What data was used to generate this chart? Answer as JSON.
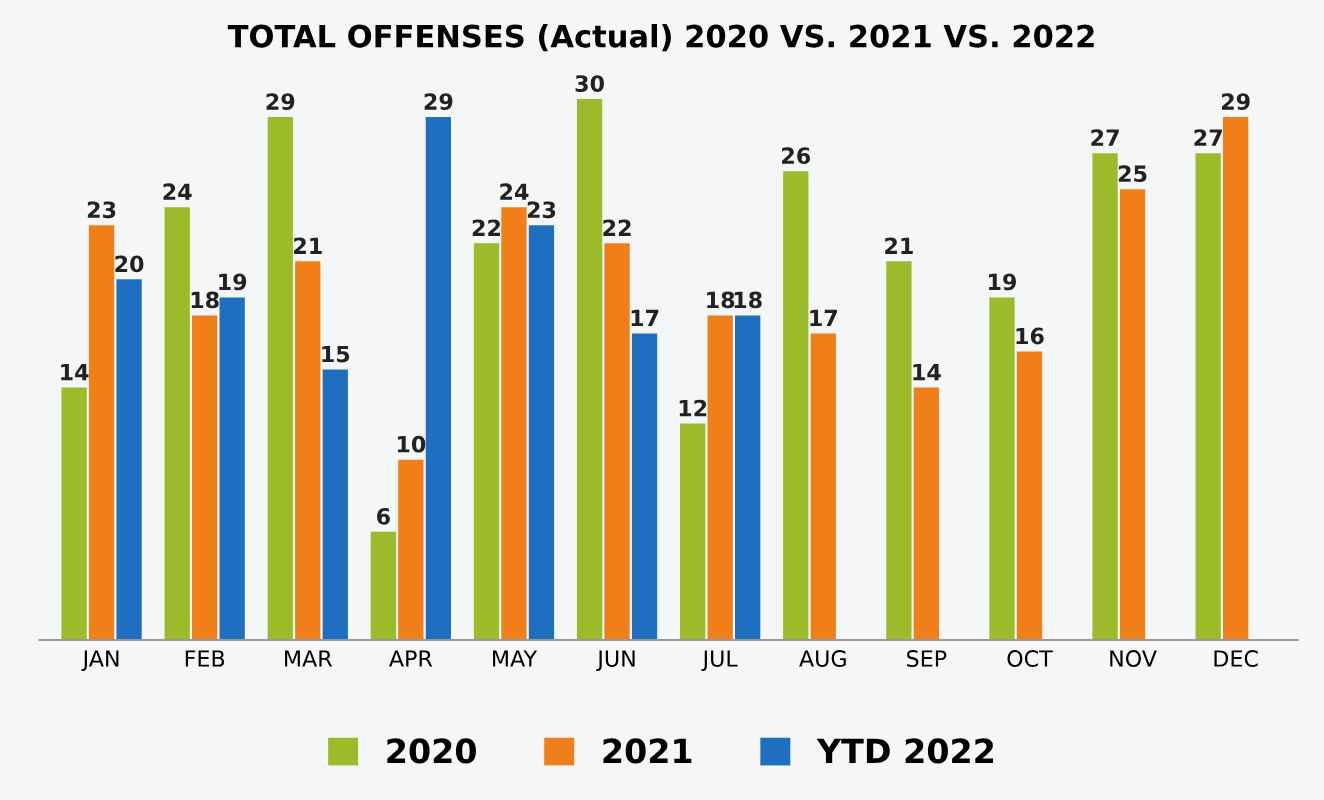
{
  "chart_data": {
    "type": "bar",
    "title": "TOTAL OFFENSES (Actual) 2020 VS. 2021 VS. 2022",
    "categories": [
      "JAN",
      "FEB",
      "MAR",
      "APR",
      "MAY",
      "JUN",
      "JUL",
      "AUG",
      "SEP",
      "OCT",
      "NOV",
      "DEC"
    ],
    "series": [
      {
        "name": "2020",
        "color": "#9bbb2a",
        "values": [
          14,
          24,
          29,
          6,
          22,
          30,
          12,
          26,
          21,
          19,
          27,
          27
        ]
      },
      {
        "name": "2021",
        "color": "#f07f1a",
        "values": [
          23,
          18,
          21,
          10,
          24,
          22,
          18,
          17,
          14,
          16,
          25,
          29
        ]
      },
      {
        "name": "YTD 2022",
        "color": "#1f6fc0",
        "values": [
          20,
          19,
          15,
          29,
          23,
          17,
          18,
          null,
          null,
          null,
          null,
          null
        ]
      }
    ],
    "data_labels": true,
    "legend": "bottom",
    "grid": false
  }
}
